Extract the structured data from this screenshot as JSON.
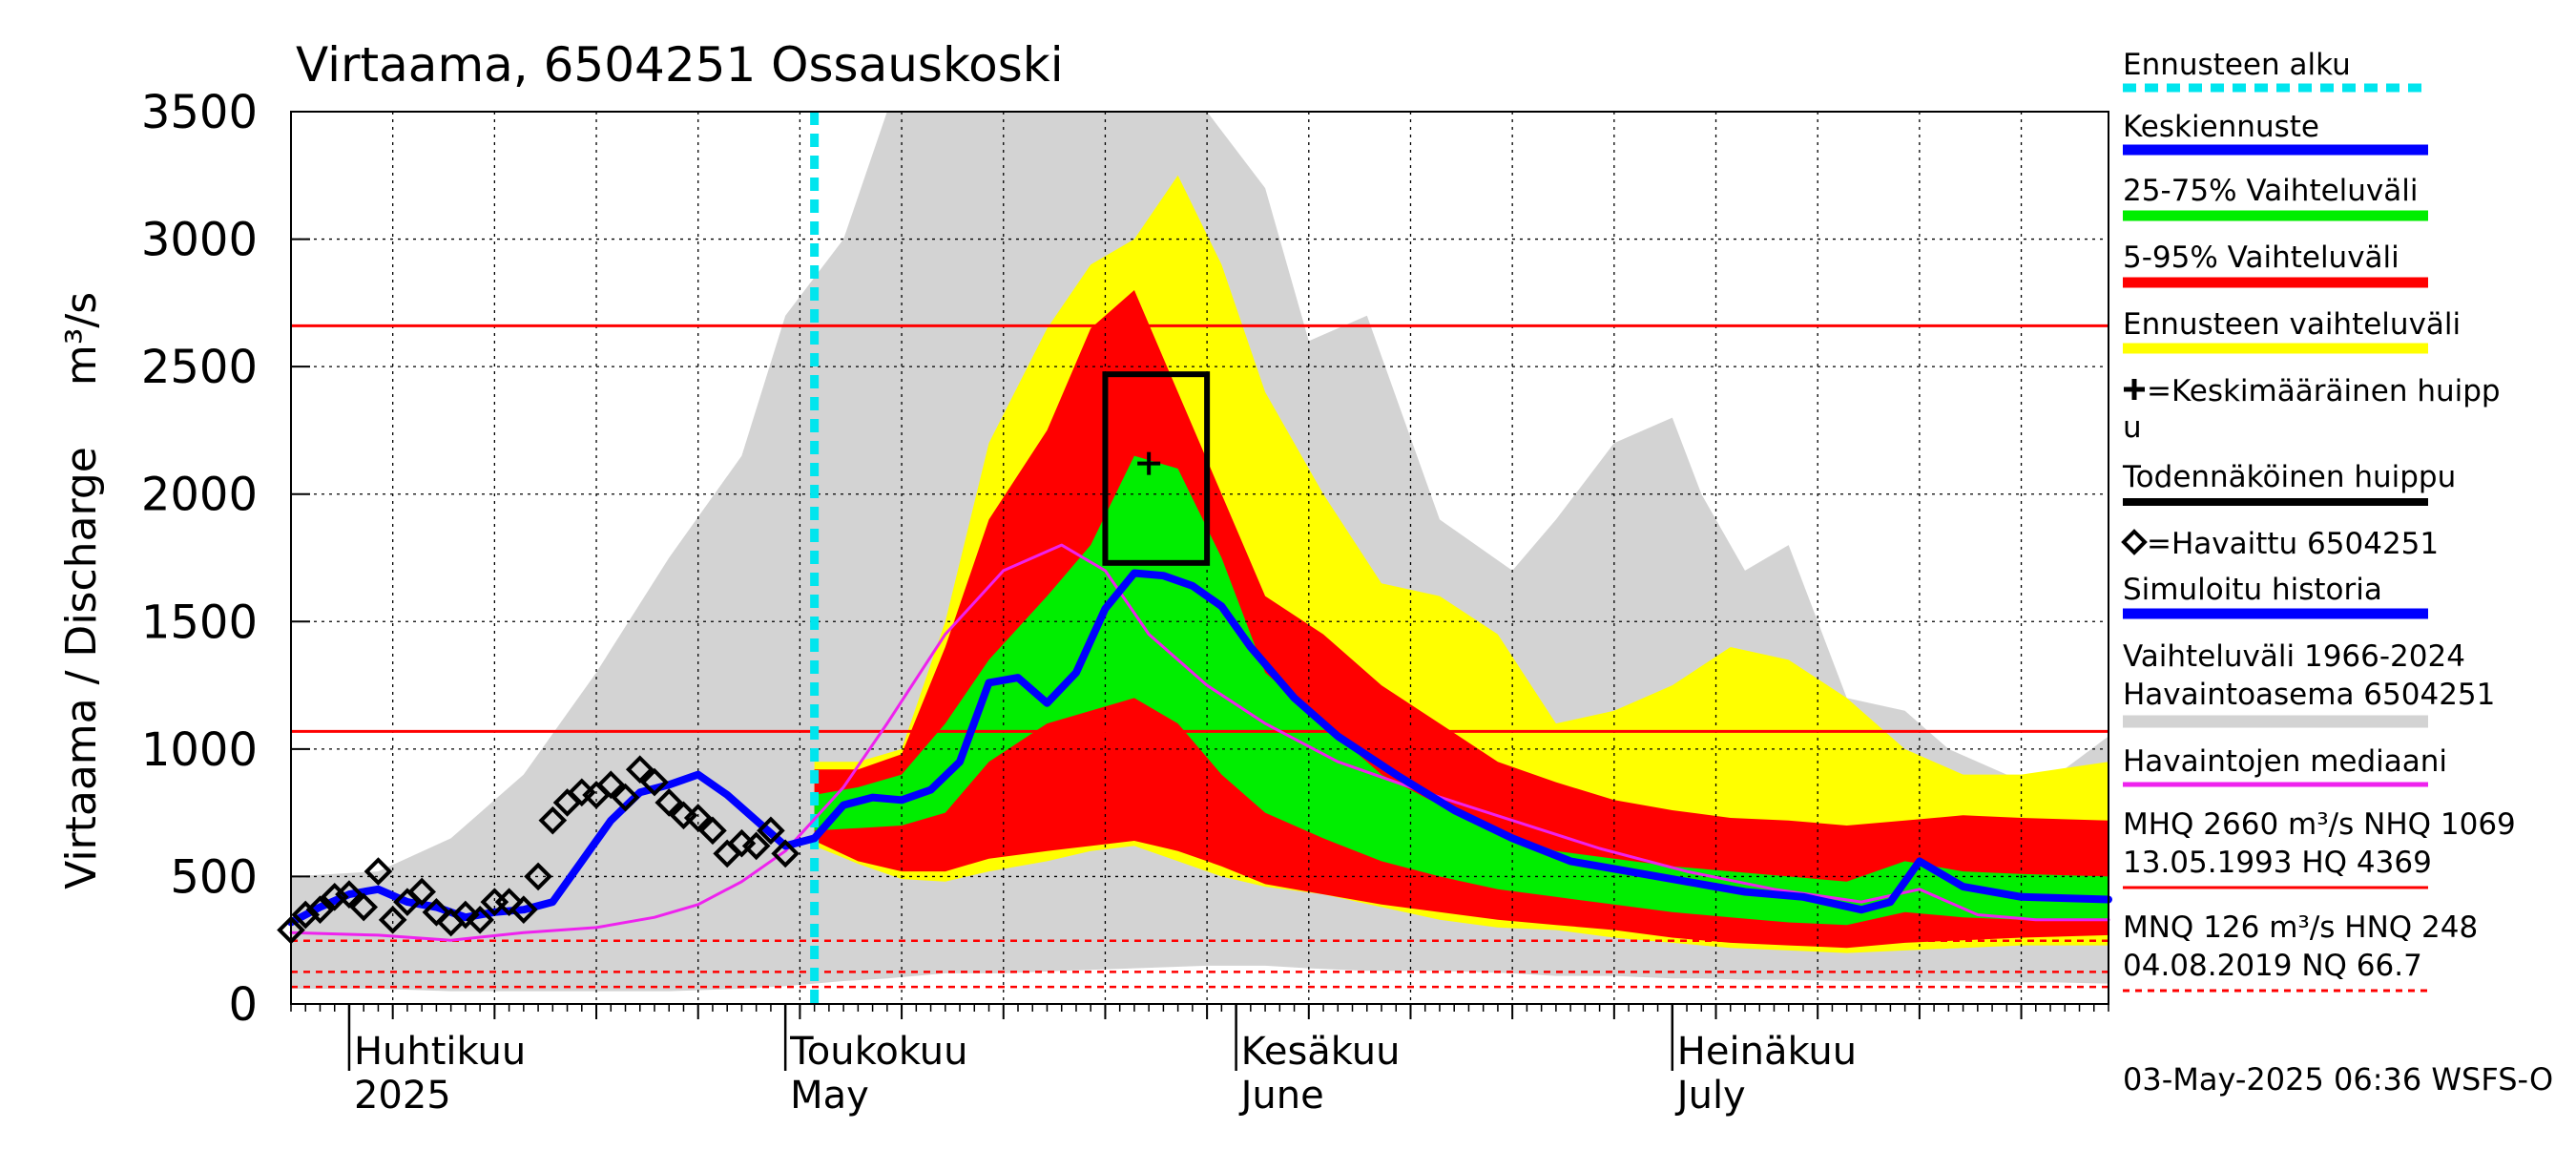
{
  "chart_data": {
    "type": "line",
    "title": "Virtaama, 6504251 Ossauskoski",
    "ylabel": "Virtaama / Discharge",
    "yunit": "m³/s",
    "ylim": [
      0,
      3500
    ],
    "yticks": [
      0,
      500,
      1000,
      1500,
      2000,
      2500,
      3000,
      3500
    ],
    "grid": true,
    "legend_position": "right",
    "x_start": "2025-03-28",
    "x_end": "2025-07-31",
    "forecast_start": "2025-05-03",
    "month_labels": [
      {
        "date": "2025-04-01",
        "fi": "Huhtikuu",
        "en": "2025"
      },
      {
        "date": "2025-05-01",
        "fi": "Toukokuu",
        "en": "May"
      },
      {
        "date": "2025-06-01",
        "fi": "Kesäkuu",
        "en": "June"
      },
      {
        "date": "2025-07-01",
        "fi": "Heinäkuu",
        "en": "July"
      }
    ],
    "reference_lines": [
      {
        "name": "MHQ",
        "value": 2660,
        "style": "solid"
      },
      {
        "name": "NHQ",
        "value": 1069,
        "style": "solid"
      },
      {
        "name": "HNQ",
        "value": 248,
        "style": "dashed"
      },
      {
        "name": "MNQ",
        "value": 126,
        "style": "dashed"
      },
      {
        "name": "NQ",
        "value": 66.7,
        "style": "dashed"
      }
    ],
    "peak_box": {
      "date_from": "2025-05-23",
      "date_to": "2025-05-30",
      "low": 1730,
      "high": 2470
    },
    "mean_peak": {
      "date": "2025-05-26",
      "value": 2120
    },
    "series": {
      "historical_range": {
        "name": "Vaihteluväli 1966-2024 Havaintoasema 6504251",
        "color": "#d3d3d3",
        "x": [
          "2025-03-28",
          "2025-04-03",
          "2025-04-08",
          "2025-04-13",
          "2025-04-18",
          "2025-04-23",
          "2025-04-28",
          "2025-05-01",
          "2025-05-05",
          "2025-05-08",
          "2025-05-12",
          "2025-05-16",
          "2025-05-20",
          "2025-05-25",
          "2025-05-30",
          "2025-06-03",
          "2025-06-06",
          "2025-06-10",
          "2025-06-15",
          "2025-06-20",
          "2025-06-23",
          "2025-06-27",
          "2025-07-01",
          "2025-07-03",
          "2025-07-06",
          "2025-07-09",
          "2025-07-13",
          "2025-07-17",
          "2025-07-20",
          "2025-07-24",
          "2025-07-27",
          "2025-07-31"
        ],
        "low": [
          60,
          60,
          50,
          50,
          50,
          50,
          60,
          70,
          90,
          100,
          120,
          120,
          130,
          140,
          150,
          150,
          140,
          130,
          130,
          120,
          110,
          110,
          100,
          100,
          95,
          95,
          90,
          90,
          90,
          85,
          85,
          80
        ],
        "high": [
          500,
          520,
          650,
          900,
          1300,
          1750,
          2150,
          2700,
          3000,
          3500,
          3500,
          3500,
          3500,
          3500,
          3500,
          3200,
          2600,
          2700,
          1900,
          1700,
          1900,
          2200,
          2300,
          2000,
          1700,
          1800,
          1200,
          1150,
          1000,
          900,
          880,
          1050
        ]
      },
      "forecast_range": {
        "name": "Ennusteen vaihteluväli",
        "color": "#ffff00",
        "x": [
          "2025-05-03",
          "2025-05-06",
          "2025-05-09",
          "2025-05-12",
          "2025-05-15",
          "2025-05-19",
          "2025-05-22",
          "2025-05-25",
          "2025-05-28",
          "2025-05-31",
          "2025-06-03",
          "2025-06-07",
          "2025-06-11",
          "2025-06-15",
          "2025-06-19",
          "2025-06-23",
          "2025-06-27",
          "2025-07-01",
          "2025-07-05",
          "2025-07-09",
          "2025-07-13",
          "2025-07-17",
          "2025-07-21",
          "2025-07-25",
          "2025-07-31"
        ],
        "low": [
          620,
          550,
          490,
          480,
          520,
          560,
          600,
          620,
          560,
          500,
          460,
          430,
          380,
          330,
          300,
          290,
          260,
          240,
          220,
          210,
          200,
          210,
          220,
          230,
          230
        ],
        "high": [
          950,
          950,
          1000,
          1500,
          2200,
          2650,
          2900,
          3000,
          3250,
          2900,
          2400,
          2000,
          1650,
          1600,
          1450,
          1100,
          1150,
          1250,
          1400,
          1350,
          1200,
          1000,
          900,
          900,
          950
        ]
      },
      "range_5_95": {
        "name": "5-95% Vaihteluväli",
        "color": "#ff0000",
        "x": [
          "2025-05-03",
          "2025-05-06",
          "2025-05-09",
          "2025-05-12",
          "2025-05-15",
          "2025-05-19",
          "2025-05-22",
          "2025-05-25",
          "2025-05-28",
          "2025-05-31",
          "2025-06-03",
          "2025-06-07",
          "2025-06-11",
          "2025-06-15",
          "2025-06-19",
          "2025-06-23",
          "2025-06-27",
          "2025-07-01",
          "2025-07-05",
          "2025-07-09",
          "2025-07-13",
          "2025-07-17",
          "2025-07-21",
          "2025-07-25",
          "2025-07-31"
        ],
        "low": [
          640,
          560,
          520,
          520,
          570,
          600,
          620,
          640,
          600,
          540,
          470,
          430,
          390,
          360,
          330,
          310,
          290,
          260,
          240,
          230,
          220,
          240,
          250,
          260,
          270
        ],
        "high": [
          920,
          920,
          980,
          1400,
          1900,
          2250,
          2650,
          2800,
          2400,
          2000,
          1600,
          1450,
          1250,
          1100,
          950,
          870,
          800,
          760,
          730,
          720,
          700,
          720,
          740,
          730,
          720
        ]
      },
      "range_25_75": {
        "name": "25-75% Vaihteluväli",
        "color": "#00ee00",
        "x": [
          "2025-05-03",
          "2025-05-06",
          "2025-05-09",
          "2025-05-12",
          "2025-05-15",
          "2025-05-19",
          "2025-05-22",
          "2025-05-25",
          "2025-05-28",
          "2025-05-31",
          "2025-06-03",
          "2025-06-07",
          "2025-06-11",
          "2025-06-15",
          "2025-06-19",
          "2025-06-23",
          "2025-06-27",
          "2025-07-01",
          "2025-07-05",
          "2025-07-09",
          "2025-07-13",
          "2025-07-17",
          "2025-07-21",
          "2025-07-25",
          "2025-07-31"
        ],
        "low": [
          680,
          690,
          700,
          750,
          950,
          1100,
          1150,
          1200,
          1100,
          900,
          750,
          650,
          560,
          500,
          450,
          420,
          390,
          360,
          340,
          320,
          310,
          360,
          340,
          330,
          330
        ],
        "high": [
          820,
          850,
          900,
          1100,
          1350,
          1600,
          1800,
          2150,
          2100,
          1750,
          1300,
          1100,
          900,
          780,
          680,
          600,
          570,
          540,
          520,
          500,
          480,
          560,
          520,
          510,
          500
        ]
      },
      "median_forecast": {
        "name": "Keskiennuste",
        "color": "#0000ff",
        "x": [
          "2025-05-03",
          "2025-05-05",
          "2025-05-07",
          "2025-05-09",
          "2025-05-11",
          "2025-05-13",
          "2025-05-15",
          "2025-05-17",
          "2025-05-19",
          "2025-05-21",
          "2025-05-23",
          "2025-05-25",
          "2025-05-27",
          "2025-05-29",
          "2025-05-31",
          "2025-06-02",
          "2025-06-05",
          "2025-06-08",
          "2025-06-12",
          "2025-06-16",
          "2025-06-20",
          "2025-06-24",
          "2025-06-28",
          "2025-07-02",
          "2025-07-06",
          "2025-07-10",
          "2025-07-14",
          "2025-07-16",
          "2025-07-18",
          "2025-07-21",
          "2025-07-25",
          "2025-07-31"
        ],
        "values": [
          650,
          780,
          810,
          800,
          840,
          950,
          1260,
          1280,
          1180,
          1300,
          1550,
          1690,
          1680,
          1640,
          1560,
          1400,
          1200,
          1050,
          900,
          760,
          650,
          560,
          520,
          480,
          440,
          420,
          370,
          400,
          560,
          460,
          420,
          410
        ]
      },
      "observed_median": {
        "name": "Havaintojen mediaani",
        "color": "#ee22ee",
        "x": [
          "2025-03-28",
          "2025-04-03",
          "2025-04-08",
          "2025-04-13",
          "2025-04-18",
          "2025-04-22",
          "2025-04-25",
          "2025-04-28",
          "2025-05-01",
          "2025-05-05",
          "2025-05-08",
          "2025-05-12",
          "2025-05-16",
          "2025-05-20",
          "2025-05-23",
          "2025-05-26",
          "2025-05-30",
          "2025-06-03",
          "2025-06-08",
          "2025-06-14",
          "2025-06-20",
          "2025-06-26",
          "2025-07-02",
          "2025-07-08",
          "2025-07-14",
          "2025-07-18",
          "2025-07-22",
          "2025-07-26",
          "2025-07-31"
        ],
        "values": [
          280,
          270,
          250,
          280,
          300,
          340,
          390,
          480,
          600,
          850,
          1100,
          1450,
          1700,
          1800,
          1700,
          1450,
          1250,
          1100,
          950,
          830,
          720,
          610,
          520,
          450,
          400,
          450,
          350,
          330,
          330
        ]
      },
      "simulated_history": {
        "name": "Simuloitu historia",
        "color": "#0000ff",
        "x": [
          "2025-03-28",
          "2025-03-30",
          "2025-04-01",
          "2025-04-03",
          "2025-04-05",
          "2025-04-07",
          "2025-04-09",
          "2025-04-11",
          "2025-04-13",
          "2025-04-15",
          "2025-04-17",
          "2025-04-19",
          "2025-04-21",
          "2025-04-23",
          "2025-04-25",
          "2025-04-27",
          "2025-04-29",
          "2025-05-01",
          "2025-05-03"
        ],
        "values": [
          320,
          380,
          430,
          450,
          400,
          380,
          340,
          360,
          370,
          400,
          560,
          720,
          830,
          860,
          900,
          820,
          720,
          620,
          650
        ]
      },
      "observed": {
        "name": "=Havaittu 6504251",
        "x": [
          "2025-03-28",
          "2025-03-29",
          "2025-03-30",
          "2025-03-31",
          "2025-04-01",
          "2025-04-02",
          "2025-04-03",
          "2025-04-04",
          "2025-04-05",
          "2025-04-06",
          "2025-04-07",
          "2025-04-08",
          "2025-04-09",
          "2025-04-10",
          "2025-04-11",
          "2025-04-12",
          "2025-04-13",
          "2025-04-14",
          "2025-04-15",
          "2025-04-16",
          "2025-04-17",
          "2025-04-18",
          "2025-04-19",
          "2025-04-20",
          "2025-04-21",
          "2025-04-22",
          "2025-04-23",
          "2025-04-24",
          "2025-04-25",
          "2025-04-26",
          "2025-04-27",
          "2025-04-28",
          "2025-04-29",
          "2025-04-30",
          "2025-05-01"
        ],
        "values": [
          290,
          350,
          370,
          420,
          430,
          380,
          520,
          330,
          400,
          440,
          360,
          320,
          350,
          330,
          400,
          400,
          370,
          500,
          720,
          790,
          830,
          820,
          860,
          810,
          920,
          870,
          790,
          740,
          730,
          680,
          590,
          630,
          620,
          680,
          590
        ]
      }
    }
  },
  "legend": {
    "forecast_start": "Ennusteen alku",
    "median_forecast": "Keskiennuste",
    "range_25_75": "25-75% Vaihteluväli",
    "range_5_95": "5-95% Vaihteluväli",
    "forecast_range": "Ennusteen vaihteluväli",
    "mean_peak_line1": "=Keskimääräinen huipp",
    "mean_peak_line2": "u",
    "probable_peak": "Todennäköinen huippu",
    "observed": "=Havaittu 6504251",
    "simulated_history": "Simuloitu historia",
    "historical_range_line1": "Vaihteluväli 1966-2024",
    "historical_range_line2": " Havaintoasema 6504251",
    "observed_median": "Havaintojen mediaani",
    "stats_line1": "MHQ 2660 m³/s NHQ 1069",
    "stats_line2": "13.05.1993 HQ 4369",
    "stats_line3": "MNQ  126 m³/s HNQ  248",
    "stats_line4": "04.08.2019 NQ 66.7"
  },
  "colors": {
    "forecast_start": "#00e5ee",
    "median_forecast": "#0000ff",
    "range_25_75": "#00ee00",
    "range_5_95": "#ff0000",
    "forecast_range": "#ffff00",
    "probable_peak": "#000000",
    "simulated_history": "#0000ff",
    "historical_range": "#d3d3d3",
    "observed_median": "#ee22ee",
    "reference_line": "#ff0000"
  },
  "footer": "03-May-2025 06:36 WSFS-O"
}
